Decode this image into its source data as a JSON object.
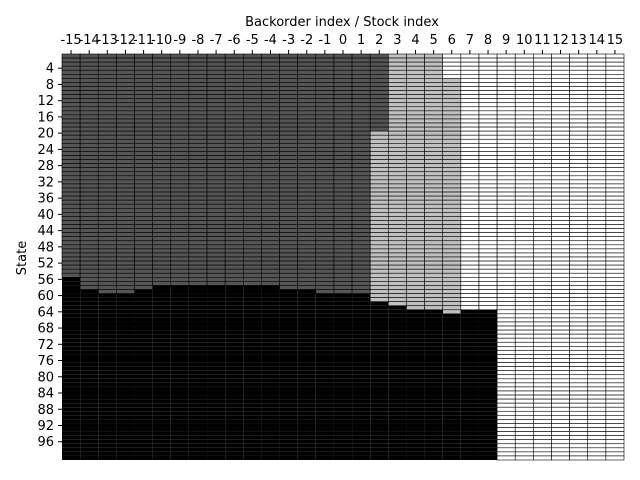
{
  "chart_data": {
    "type": "heatmap",
    "title": "",
    "xlabel": "Backorder index / Stock index",
    "ylabel": "State",
    "x_axis_position": "top",
    "x_categories": [
      -15,
      -14,
      -13,
      -12,
      -11,
      -10,
      -9,
      -8,
      -7,
      -6,
      -5,
      -4,
      -3,
      -2,
      -1,
      0,
      1,
      2,
      3,
      4,
      5,
      6,
      7,
      8,
      9,
      10,
      11,
      12,
      13,
      14,
      15
    ],
    "y_states": [
      1,
      100
    ],
    "y_tick_labels": [
      "4",
      "8",
      "12",
      "16",
      "20",
      "24",
      "28",
      "32",
      "36",
      "40",
      "44",
      "48",
      "52",
      "56",
      "60",
      "64",
      "68",
      "72",
      "76",
      "80",
      "84",
      "88",
      "92",
      "96"
    ],
    "colors": {
      "black_region": "#000000",
      "dark_gray": "#555555",
      "light_gray": "#c0c0c0",
      "white": "#ffffff",
      "cell_border": "#000000"
    },
    "columns": [
      {
        "index": -15,
        "dark_from": 1,
        "black_from": 56
      },
      {
        "index": -14,
        "dark_from": 1,
        "black_from": 59
      },
      {
        "index": -13,
        "dark_from": 1,
        "black_from": 60
      },
      {
        "index": -12,
        "dark_from": 1,
        "black_from": 60
      },
      {
        "index": -11,
        "dark_from": 1,
        "black_from": 59
      },
      {
        "index": -10,
        "dark_from": 1,
        "black_from": 58
      },
      {
        "index": -9,
        "dark_from": 1,
        "black_from": 58
      },
      {
        "index": -8,
        "dark_from": 1,
        "black_from": 58
      },
      {
        "index": -7,
        "dark_from": 1,
        "black_from": 58
      },
      {
        "index": -6,
        "dark_from": 1,
        "black_from": 58
      },
      {
        "index": -5,
        "dark_from": 1,
        "black_from": 58
      },
      {
        "index": -4,
        "dark_from": 1,
        "black_from": 58
      },
      {
        "index": -3,
        "dark_from": 1,
        "black_from": 59
      },
      {
        "index": -2,
        "dark_from": 1,
        "black_from": 59
      },
      {
        "index": -1,
        "dark_from": 1,
        "black_from": 60
      },
      {
        "index": 0,
        "dark_from": 1,
        "black_from": 60
      },
      {
        "index": 1,
        "dark_from": 1,
        "black_from": 60
      },
      {
        "index": 2,
        "dark_from": 1,
        "dark_to": 19,
        "light_from": 20,
        "black_from": 62
      },
      {
        "index": 3,
        "light_from": 1,
        "black_from": 63
      },
      {
        "index": 4,
        "light_from": 1,
        "black_from": 64
      },
      {
        "index": 5,
        "light_from": 1,
        "black_from": 64
      },
      {
        "index": 6,
        "light_from": 7,
        "black_from": 65
      },
      {
        "index": 7,
        "black_from": 64
      },
      {
        "index": 8,
        "black_from": 64
      },
      {
        "index": 9
      },
      {
        "index": 10
      },
      {
        "index": 11
      },
      {
        "index": 12
      },
      {
        "index": 13
      },
      {
        "index": 14
      },
      {
        "index": 15
      }
    ]
  }
}
